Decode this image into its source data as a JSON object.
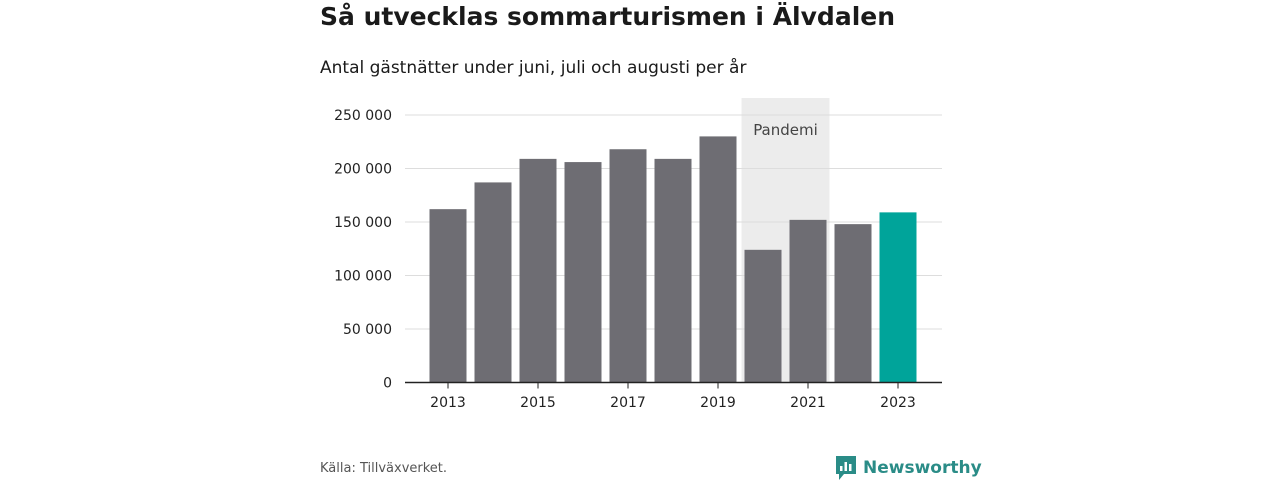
{
  "title": "Så utvecklas sommarturismen i Älvdalen",
  "subtitle": "Antal gästnätter under juni, juli och augusti per år",
  "source": "Källa: Tillväxverket.",
  "brand": "Newsworthy",
  "colors": {
    "bar": "#6e6d73",
    "highlight": "#00a49a",
    "band": "#ececec",
    "grid": "#dddddd",
    "brand": "#2a8c87"
  },
  "chart_data": {
    "type": "bar",
    "categories": [
      "2013",
      "2014",
      "2015",
      "2016",
      "2017",
      "2018",
      "2019",
      "2020",
      "2021",
      "2022",
      "2023"
    ],
    "values": [
      162000,
      187000,
      209000,
      206000,
      218000,
      209000,
      230000,
      124000,
      152000,
      148000,
      159000
    ],
    "highlight_category": "2023",
    "x_tick_labels": [
      "2013",
      "2015",
      "2017",
      "2019",
      "2021",
      "2023"
    ],
    "y_ticks": [
      0,
      50000,
      100000,
      150000,
      200000,
      250000
    ],
    "y_tick_labels": [
      "0",
      "50 000",
      "100 000",
      "150 000",
      "200 000",
      "250 000"
    ],
    "ylim": [
      0,
      250000
    ],
    "grid": true,
    "shaded_band": {
      "from": "2020",
      "to": "2021",
      "label": "Pandemi"
    }
  }
}
